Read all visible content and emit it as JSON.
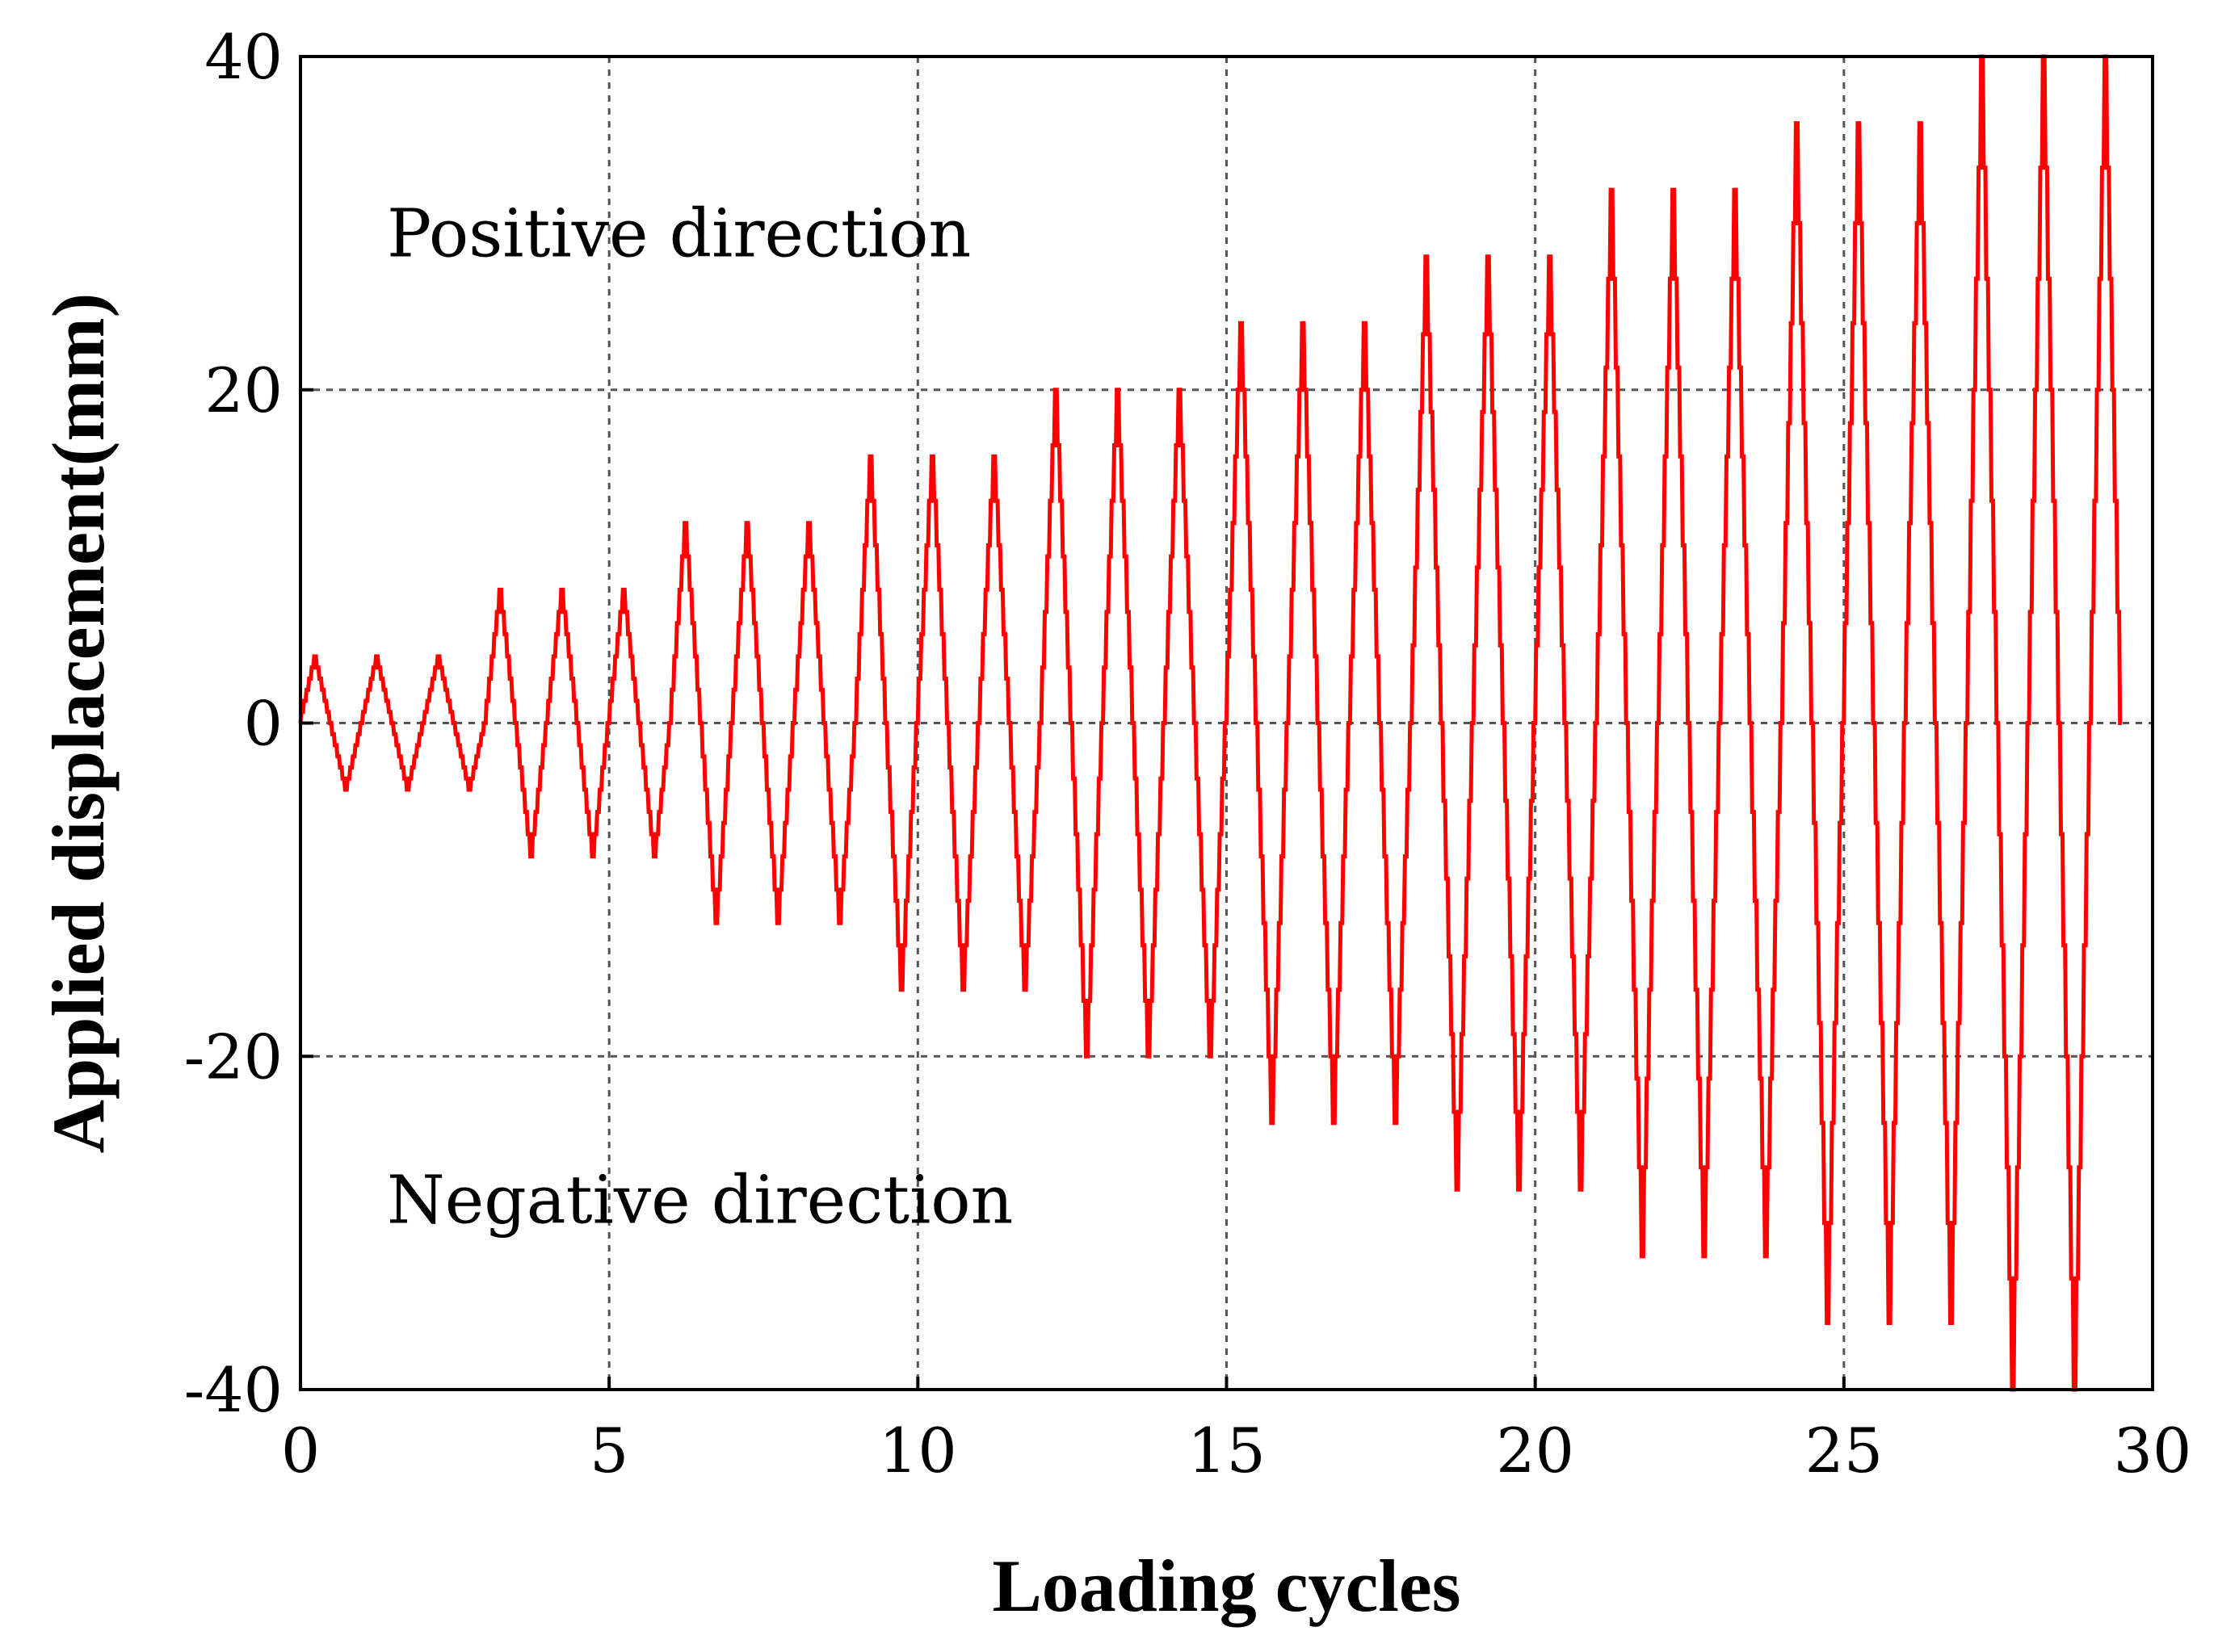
{
  "chart_data": {
    "type": "line",
    "title": "",
    "xlabel": "Loading cycles",
    "ylabel": "Applied displacement(mm)",
    "xlim": [
      0,
      30
    ],
    "ylim": [
      -40,
      40
    ],
    "xticks": [
      0,
      5,
      10,
      15,
      20,
      25,
      30
    ],
    "yticks": [
      -40,
      -20,
      0,
      20,
      40
    ],
    "xtick_labels": [
      "0",
      "5",
      "10",
      "15",
      "20",
      "25",
      "30"
    ],
    "ytick_labels": [
      "-40",
      "-20",
      "0",
      "20",
      "40"
    ],
    "grid": true,
    "annotations": [
      {
        "text": "Positive direction",
        "x": 1.4,
        "y": 28
      },
      {
        "text": "Negative direction",
        "x": 1.4,
        "y": -30
      }
    ],
    "colors": {
      "series": "#ff0000",
      "grid": "#555555",
      "axes": "#000000"
    },
    "series": [
      {
        "name": "Applied displacement",
        "cycle_period": 1.0,
        "start_cycle": 0,
        "end_cycle": 29.5,
        "amplitude_by_cycle": [
          4,
          4,
          4,
          8,
          8,
          8,
          12,
          12,
          12,
          16,
          16,
          16,
          20,
          20,
          20,
          24,
          24,
          24,
          28,
          28,
          28,
          32,
          32,
          32,
          36,
          36,
          36,
          40,
          40,
          40
        ],
        "steps_per_quarter_cycle": 6
      }
    ]
  }
}
